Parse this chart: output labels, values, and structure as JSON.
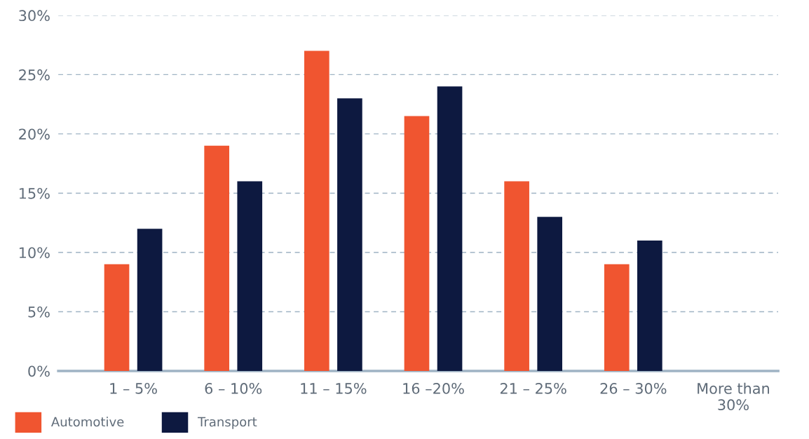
{
  "chart_data": {
    "type": "bar",
    "categories": [
      "1 – 5%",
      "6 – 10%",
      "11 – 15%",
      "16 –20%",
      "21 – 25%",
      "26 – 30%",
      "More than\n30%"
    ],
    "series": [
      {
        "name": "Automotive",
        "color": "#f05530",
        "values": [
          9,
          19,
          27,
          21.5,
          16,
          9,
          null
        ]
      },
      {
        "name": "Transport",
        "color": "#0d1940",
        "values": [
          12,
          16,
          23,
          24,
          13,
          11,
          null
        ]
      }
    ],
    "ylim": [
      0,
      30
    ],
    "yticks": [
      {
        "value": 0,
        "label": "0%"
      },
      {
        "value": 5,
        "label": "5%"
      },
      {
        "value": 10,
        "label": "10%"
      },
      {
        "value": 15,
        "label": "15%"
      },
      {
        "value": 20,
        "label": "20%"
      },
      {
        "value": 25,
        "label": "25%"
      },
      {
        "value": 30,
        "label": "30%"
      }
    ],
    "grid": "y",
    "line_style": "dashed",
    "legend": "bottom left"
  }
}
